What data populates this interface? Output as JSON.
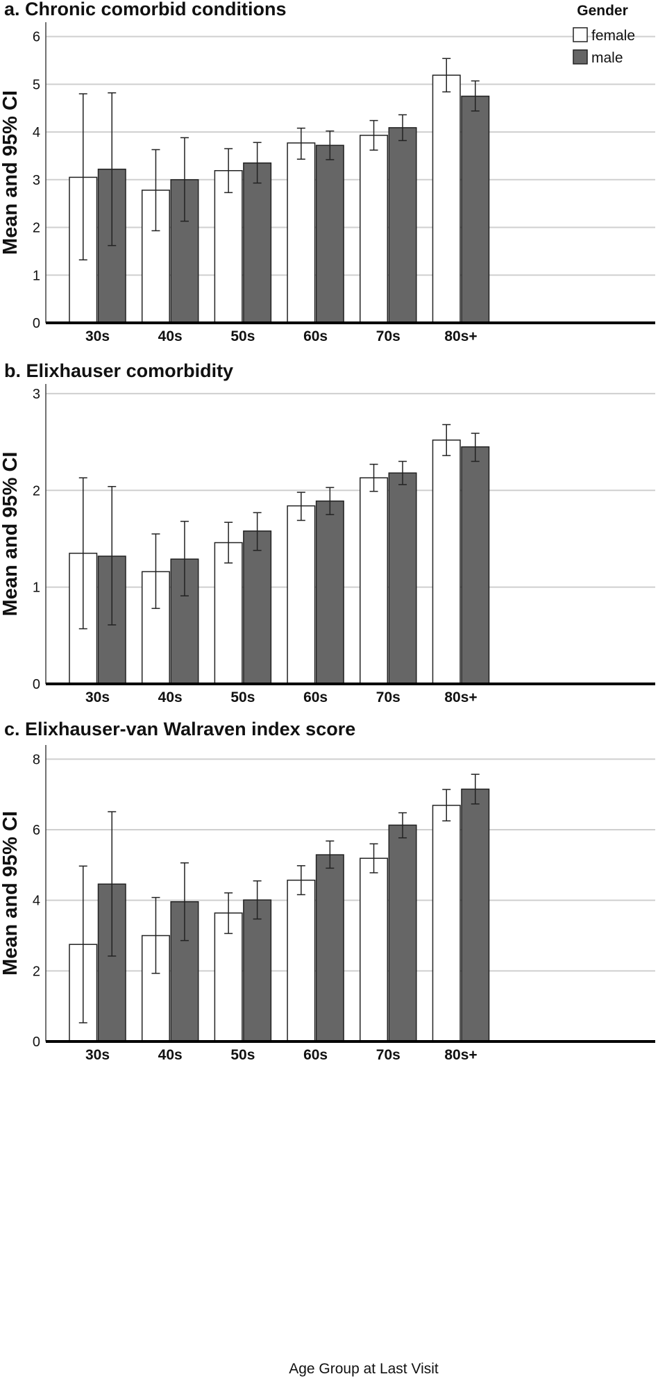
{
  "legend": {
    "title": "Gender",
    "items": [
      {
        "label": "female",
        "color": "#ffffff"
      },
      {
        "label": "male",
        "color": "#666666"
      }
    ]
  },
  "xlabel": "Age Group at Last Visit",
  "chart_data": [
    {
      "type": "bar",
      "title": "a. Chronic comorbid conditions",
      "ylabel": "Mean and 95% CI",
      "xlabel": "",
      "categories": [
        "30s",
        "40s",
        "50s",
        "60s",
        "70s",
        "80s+"
      ],
      "ylim": [
        0,
        6.3
      ],
      "yticks": [
        0,
        1,
        2,
        3,
        4,
        5,
        6
      ],
      "series": [
        {
          "name": "female",
          "values": [
            3.05,
            2.78,
            3.19,
            3.77,
            3.93,
            5.19
          ],
          "ci_low": [
            1.32,
            1.93,
            2.73,
            3.43,
            3.62,
            4.84
          ],
          "ci_high": [
            4.8,
            3.63,
            3.65,
            4.08,
            4.24,
            5.54
          ]
        },
        {
          "name": "male",
          "values": [
            3.22,
            3.0,
            3.35,
            3.72,
            4.09,
            4.75
          ],
          "ci_low": [
            1.62,
            2.13,
            2.93,
            3.42,
            3.82,
            4.44
          ],
          "ci_high": [
            4.82,
            3.88,
            3.78,
            4.02,
            4.36,
            5.07
          ]
        }
      ]
    },
    {
      "type": "bar",
      "title": "b. Elixhauser comorbidity",
      "ylabel": "Mean and 95% CI",
      "xlabel": "",
      "categories": [
        "30s",
        "40s",
        "50s",
        "60s",
        "70s",
        "80s+"
      ],
      "ylim": [
        0,
        3.1
      ],
      "yticks": [
        0,
        1,
        2,
        3
      ],
      "series": [
        {
          "name": "female",
          "values": [
            1.35,
            1.16,
            1.46,
            1.84,
            2.13,
            2.52
          ],
          "ci_low": [
            0.57,
            0.78,
            1.25,
            1.69,
            1.99,
            2.36
          ],
          "ci_high": [
            2.13,
            1.55,
            1.67,
            1.98,
            2.27,
            2.68
          ]
        },
        {
          "name": "male",
          "values": [
            1.32,
            1.29,
            1.58,
            1.89,
            2.18,
            2.45
          ],
          "ci_low": [
            0.61,
            0.91,
            1.38,
            1.75,
            2.06,
            2.3
          ],
          "ci_high": [
            2.04,
            1.68,
            1.77,
            2.03,
            2.3,
            2.59
          ]
        }
      ]
    },
    {
      "type": "bar",
      "title": "c. Elixhauser-van Walraven index score",
      "ylabel": "Mean and 95% CI",
      "xlabel": "Age Group at Last Visit",
      "categories": [
        "30s",
        "40s",
        "50s",
        "60s",
        "70s",
        "80s+"
      ],
      "ylim": [
        0,
        8.4
      ],
      "yticks": [
        0,
        2,
        4,
        6,
        8
      ],
      "series": [
        {
          "name": "female",
          "values": [
            2.75,
            3.0,
            3.64,
            4.57,
            5.19,
            6.69
          ],
          "ci_low": [
            0.53,
            1.93,
            3.06,
            4.16,
            4.78,
            6.25
          ],
          "ci_high": [
            4.97,
            4.08,
            4.21,
            4.98,
            5.6,
            7.14
          ]
        },
        {
          "name": "male",
          "values": [
            4.46,
            3.96,
            4.01,
            5.29,
            6.13,
            7.15
          ],
          "ci_low": [
            2.42,
            2.86,
            3.47,
            4.91,
            5.77,
            6.73
          ],
          "ci_high": [
            6.51,
            5.06,
            4.55,
            5.68,
            6.48,
            7.57
          ]
        }
      ]
    }
  ]
}
